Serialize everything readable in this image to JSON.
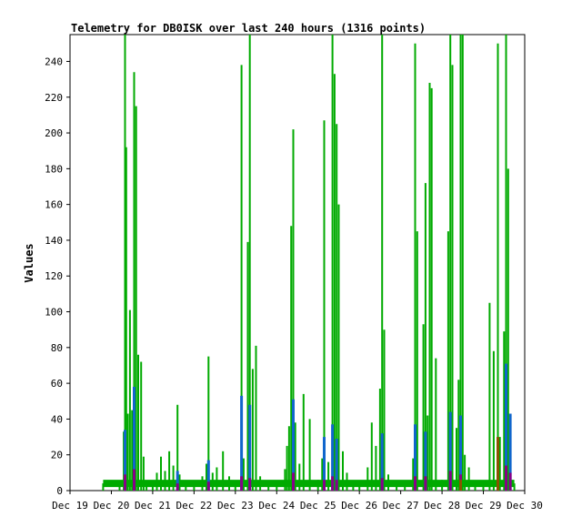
{
  "chart_data": {
    "type": "line",
    "title": "Telemetry for DB0ISK over last 240 hours (1316 points)",
    "ylabel": "Values",
    "xlabel": "",
    "ylim": [
      0,
      255
    ],
    "yticks": [
      0,
      20,
      40,
      60,
      80,
      100,
      120,
      140,
      160,
      180,
      200,
      220,
      240
    ],
    "xtick_labels": [
      "Dec 19",
      "Dec 20",
      "Dec 21",
      "Dec 22",
      "Dec 23",
      "Dec 24",
      "Dec 25",
      "Dec 26",
      "Dec 27",
      "Dec 28",
      "Dec 29",
      "Dec 30"
    ],
    "xlim_days": [
      19,
      30
    ],
    "grid": false,
    "colors": {
      "green": "#00aa00",
      "blue": "#1166cc",
      "purple": "#880088",
      "brown": "#885500"
    },
    "series": [
      {
        "color": "green",
        "values": [
          [
            19.8,
            4
          ],
          [
            20.2,
            4
          ],
          [
            20.3,
            33
          ],
          [
            20.33,
            255
          ],
          [
            20.36,
            192
          ],
          [
            20.4,
            43
          ],
          [
            20.45,
            101
          ],
          [
            20.5,
            45
          ],
          [
            20.55,
            234
          ],
          [
            20.6,
            215
          ],
          [
            20.65,
            76
          ],
          [
            20.72,
            72
          ],
          [
            20.78,
            19
          ],
          [
            20.85,
            5
          ],
          [
            21.0,
            4
          ],
          [
            21.1,
            10
          ],
          [
            21.2,
            19
          ],
          [
            21.3,
            11
          ],
          [
            21.4,
            22
          ],
          [
            21.5,
            14
          ],
          [
            21.6,
            48
          ],
          [
            21.65,
            9
          ],
          [
            21.8,
            4
          ],
          [
            22.0,
            4
          ],
          [
            22.2,
            8
          ],
          [
            22.3,
            15
          ],
          [
            22.35,
            75
          ],
          [
            22.45,
            10
          ],
          [
            22.55,
            13
          ],
          [
            22.7,
            22
          ],
          [
            22.85,
            8
          ],
          [
            23.0,
            4
          ],
          [
            23.15,
            238
          ],
          [
            23.2,
            18
          ],
          [
            23.3,
            139
          ],
          [
            23.35,
            255
          ],
          [
            23.42,
            68
          ],
          [
            23.5,
            81
          ],
          [
            23.6,
            8
          ],
          [
            23.8,
            5
          ],
          [
            24.0,
            5
          ],
          [
            24.2,
            12
          ],
          [
            24.25,
            25
          ],
          [
            24.3,
            36
          ],
          [
            24.35,
            148
          ],
          [
            24.4,
            202
          ],
          [
            24.45,
            38
          ],
          [
            24.55,
            15
          ],
          [
            24.65,
            54
          ],
          [
            24.8,
            40
          ],
          [
            25.0,
            6
          ],
          [
            25.1,
            18
          ],
          [
            25.15,
            207
          ],
          [
            25.25,
            16
          ],
          [
            25.35,
            255
          ],
          [
            25.4,
            233
          ],
          [
            25.45,
            205
          ],
          [
            25.5,
            160
          ],
          [
            25.6,
            22
          ],
          [
            25.7,
            10
          ],
          [
            25.85,
            4
          ],
          [
            26.0,
            4
          ],
          [
            26.2,
            13
          ],
          [
            26.3,
            38
          ],
          [
            26.4,
            25
          ],
          [
            26.5,
            57
          ],
          [
            26.55,
            255
          ],
          [
            26.6,
            90
          ],
          [
            26.7,
            9
          ],
          [
            26.9,
            4
          ],
          [
            27.1,
            5
          ],
          [
            27.3,
            18
          ],
          [
            27.35,
            250
          ],
          [
            27.4,
            145
          ],
          [
            27.55,
            93
          ],
          [
            27.6,
            172
          ],
          [
            27.65,
            42
          ],
          [
            27.7,
            228
          ],
          [
            27.75,
            225
          ],
          [
            27.85,
            74
          ],
          [
            28.0,
            6
          ],
          [
            28.15,
            145
          ],
          [
            28.2,
            255
          ],
          [
            28.25,
            238
          ],
          [
            28.35,
            35
          ],
          [
            28.4,
            62
          ],
          [
            28.45,
            255
          ],
          [
            28.5,
            255
          ],
          [
            28.55,
            20
          ],
          [
            28.65,
            13
          ],
          [
            28.8,
            4
          ],
          [
            29.0,
            4
          ],
          [
            29.15,
            105
          ],
          [
            29.25,
            78
          ],
          [
            29.35,
            250
          ],
          [
            29.4,
            30
          ],
          [
            29.5,
            89
          ],
          [
            29.55,
            255
          ],
          [
            29.6,
            180
          ],
          [
            29.65,
            42
          ],
          [
            29.75,
            4
          ]
        ]
      },
      {
        "color": "blue",
        "values": [
          [
            20.33,
            34
          ],
          [
            20.55,
            58
          ],
          [
            21.6,
            11
          ],
          [
            22.35,
            17
          ],
          [
            23.15,
            53
          ],
          [
            23.35,
            48
          ],
          [
            24.4,
            51
          ],
          [
            25.15,
            30
          ],
          [
            25.35,
            37
          ],
          [
            25.45,
            29
          ],
          [
            26.55,
            32
          ],
          [
            27.35,
            37
          ],
          [
            27.6,
            33
          ],
          [
            28.2,
            44
          ],
          [
            28.45,
            42
          ],
          [
            29.35,
            29
          ],
          [
            29.55,
            71
          ],
          [
            29.65,
            43
          ]
        ]
      },
      {
        "color": "purple",
        "values": [
          [
            20.33,
            9
          ],
          [
            20.55,
            12
          ],
          [
            21.6,
            4
          ],
          [
            22.35,
            5
          ],
          [
            23.15,
            8
          ],
          [
            23.35,
            7
          ],
          [
            24.4,
            10
          ],
          [
            25.15,
            6
          ],
          [
            25.35,
            8
          ],
          [
            25.45,
            6
          ],
          [
            26.55,
            7
          ],
          [
            27.35,
            8
          ],
          [
            27.6,
            8
          ],
          [
            28.2,
            11
          ],
          [
            28.45,
            9
          ],
          [
            29.35,
            6
          ],
          [
            29.55,
            14
          ],
          [
            29.65,
            10
          ]
        ]
      },
      {
        "color": "brown",
        "values": [
          [
            29.35,
            30
          ],
          [
            28.45,
            6
          ]
        ]
      }
    ]
  }
}
